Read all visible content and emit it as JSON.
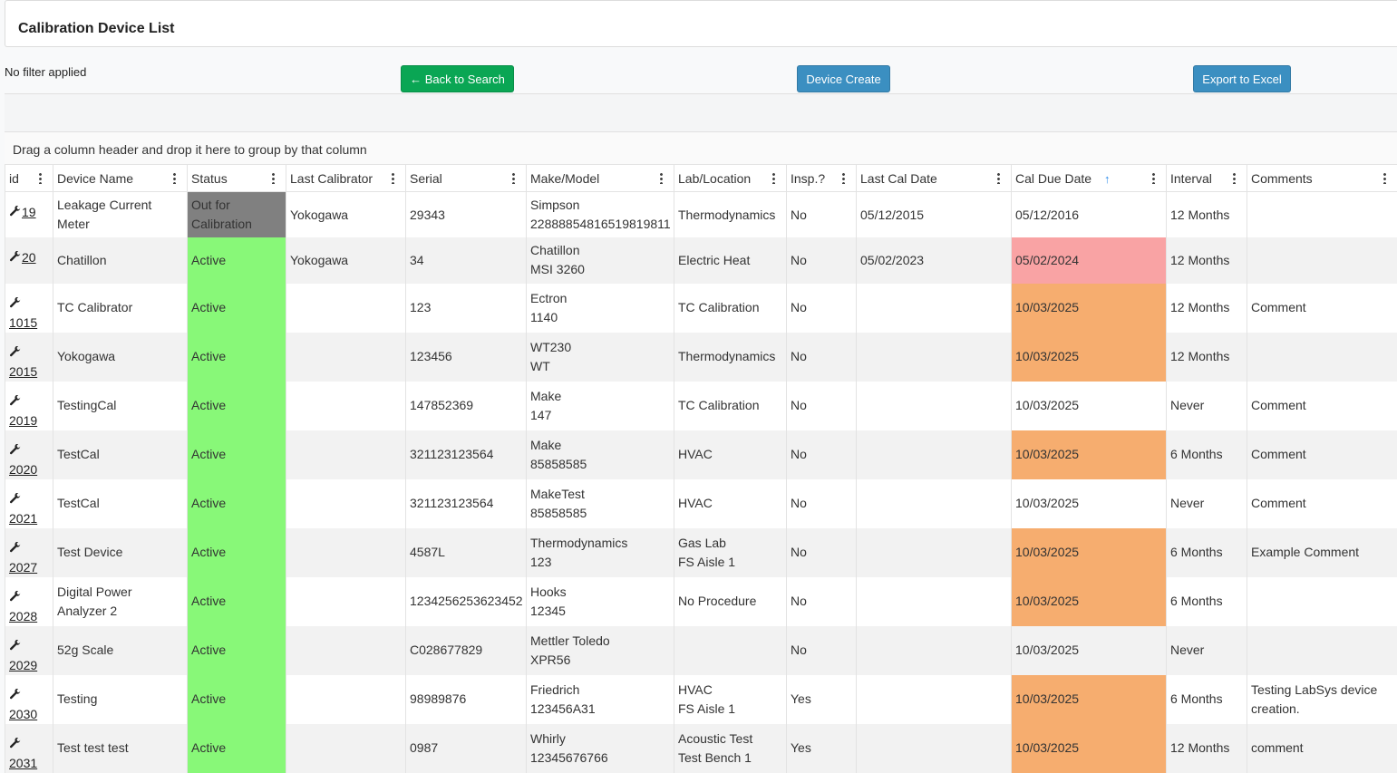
{
  "header": {
    "title": "Calibration Device List"
  },
  "filter_text": "No filter applied",
  "buttons": [
    "← Back to Search",
    "Device Create",
    "Export to Excel"
  ],
  "group_panel_text": "Drag a column header and drop it here to group by that column",
  "table": {
    "columns": [
      "id",
      "Device Name",
      "Status",
      "Last Calibrator",
      "Serial",
      "Make/Model",
      "Lab/Location",
      "Insp.?",
      "Last Cal Date",
      "Cal Due Date",
      "Interval",
      "Comments"
    ],
    "rows": [
      {
        "cells": [
          "19",
          "Leakage Current Meter",
          "Out for Calibration",
          "Yokogawa",
          "29343",
          "Simpson\n22888854816519819811",
          "Thermodynamics",
          "No",
          "05/12/2015",
          "05/12/2016",
          "12 Months",
          null
        ],
        "status_color": "#808080"
      },
      {
        "cells": [
          "20",
          "Chatillon",
          "Active",
          "Yokogawa",
          "34",
          "Chatillon\nMSI 3260",
          "Electric Heat",
          "No",
          "05/02/2023",
          "05/02/2024",
          "12 Months",
          null
        ],
        "status_color": "#88f878",
        "due_color": "#f9a3a4"
      },
      {
        "cells": [
          "1015",
          "TC Calibrator",
          "Active",
          null,
          "123",
          "Ectron\n1140",
          "TC Calibration",
          "No",
          null,
          "10/03/2025",
          "12 Months",
          "Comment"
        ],
        "status_color": "#88f878",
        "due_color": "#f6ad6f"
      },
      {
        "cells": [
          "2015",
          "Yokogawa",
          "Active",
          null,
          "123456",
          "WT230\nWT",
          "Thermodynamics",
          "No",
          null,
          "10/03/2025",
          "12 Months",
          null
        ],
        "status_color": "#88f878",
        "due_color": "#f6ad6f"
      },
      {
        "cells": [
          "2019",
          "TestingCal",
          "Active",
          null,
          "147852369",
          "Make\n147",
          "TC Calibration",
          "No",
          null,
          "10/03/2025",
          "Never",
          "Comment"
        ],
        "status_color": "#88f878"
      },
      {
        "cells": [
          "2020",
          "TestCal",
          "Active",
          null,
          "321123123564",
          "Make\n85858585",
          "HVAC",
          "No",
          null,
          "10/03/2025",
          "6 Months",
          "Comment"
        ],
        "status_color": "#88f878",
        "due_color": "#f6ad6f"
      },
      {
        "cells": [
          "2021",
          "TestCal",
          "Active",
          null,
          "321123123564",
          "MakeTest\n85858585",
          "HVAC",
          "No",
          null,
          "10/03/2025",
          "Never",
          "Comment"
        ],
        "status_color": "#88f878"
      },
      {
        "cells": [
          "2027",
          "Test Device",
          "Active",
          null,
          "4587L",
          "Thermodynamics\n123",
          "Gas Lab\nFS Aisle 1",
          "No",
          null,
          "10/03/2025",
          "6 Months",
          "Example Comment"
        ],
        "status_color": "#88f878",
        "due_color": "#f6ad6f"
      },
      {
        "cells": [
          "2028",
          "Digital Power Analyzer 2",
          "Active",
          null,
          "1234256253623452",
          "Hooks\n12345",
          "No Procedure",
          "No",
          null,
          "10/03/2025",
          "6 Months",
          null
        ],
        "status_color": "#88f878",
        "due_color": "#f6ad6f"
      },
      {
        "cells": [
          "2029",
          "52g Scale",
          "Active",
          null,
          "C028677829",
          "Mettler Toledo\nXPR56",
          null,
          "No",
          null,
          "10/03/2025",
          "Never",
          null
        ],
        "status_color": "#88f878"
      },
      {
        "cells": [
          "2030",
          "Testing",
          "Active",
          null,
          "98989876",
          "Friedrich\n123456A31",
          "HVAC\nFS Aisle 1",
          "Yes",
          null,
          "10/03/2025",
          "6 Months",
          "Testing LabSys device creation."
        ],
        "status_color": "#88f878",
        "due_color": "#f6ad6f"
      },
      {
        "cells": [
          "2031",
          "Test test test",
          "Active",
          null,
          "0987",
          "Whirly\n12345676766",
          "Acoustic Test\nTest Bench 1",
          "Yes",
          null,
          "10/03/2025",
          "12 Months",
          "comment"
        ],
        "status_color": "#88f878",
        "due_color": "#f6ad6f"
      }
    ]
  }
}
